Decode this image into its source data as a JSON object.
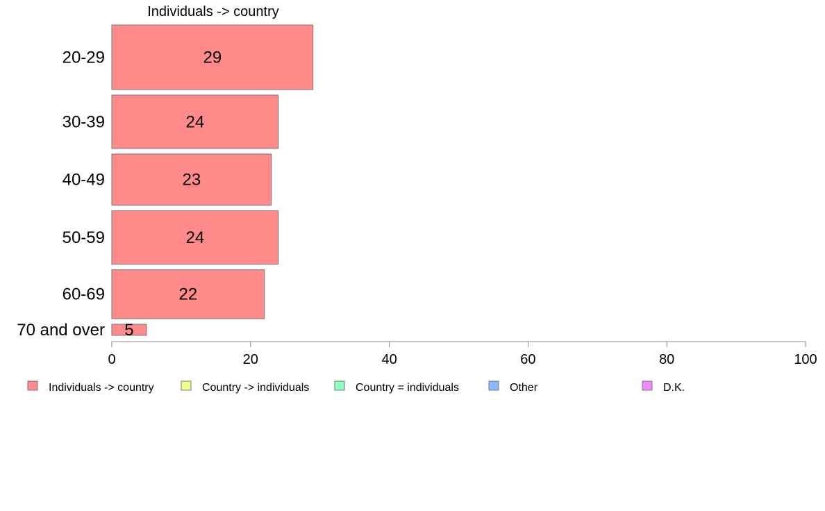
{
  "chart_data": {
    "type": "bar",
    "orientation": "horizontal",
    "title": "",
    "xlabel": "",
    "ylabel": "",
    "xlim": [
      0,
      100
    ],
    "x_ticks": [
      "0",
      "20",
      "40",
      "60",
      "80",
      "100"
    ],
    "grid": false,
    "legend_position": "bottom",
    "categories": [
      "20-29",
      "30-39",
      "40-49",
      "50-59",
      "60-69",
      "70 and over"
    ],
    "group_sizes": [
      29,
      24,
      23,
      24,
      22,
      5
    ],
    "series": [
      {
        "name": "Individuals -> country",
        "color": "#FF8A8A",
        "values": [
          29,
          24,
          23,
          24,
          22,
          5
        ]
      },
      {
        "name": "Country -> individuals",
        "color": "#EEFF8A",
        "values": [
          null,
          null,
          null,
          null,
          null,
          null
        ]
      },
      {
        "name": "Country = individuals",
        "color": "#8AFFBE",
        "values": [
          null,
          null,
          null,
          null,
          null,
          null
        ]
      },
      {
        "name": "Other",
        "color": "#8AB8FF",
        "values": [
          null,
          null,
          null,
          null,
          null,
          null
        ]
      },
      {
        "name": "D.K.",
        "color": "#EE8AFF",
        "values": [
          null,
          null,
          null,
          null,
          null,
          null
        ]
      }
    ],
    "segment_header": "Individuals -> country"
  }
}
